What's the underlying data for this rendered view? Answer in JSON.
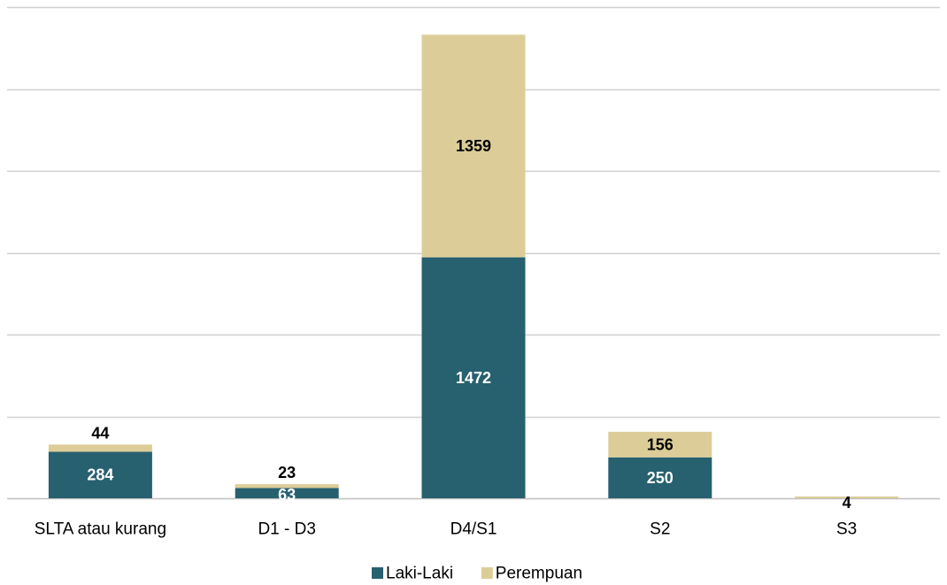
{
  "chart_data": {
    "type": "bar",
    "stacked": true,
    "categories": [
      "SLTA atau kurang",
      "D1 - D3",
      "D4/S1",
      "S2",
      "S3"
    ],
    "series": [
      {
        "name": "Laki-Laki",
        "values": [
          284,
          63,
          1472,
          250,
          0
        ],
        "labels": [
          "284",
          "63",
          "1472",
          "250",
          ""
        ],
        "color": "#27606f",
        "label_color": "#ffffff"
      },
      {
        "name": "Perempuan",
        "values": [
          44,
          23,
          1359,
          156,
          4
        ],
        "labels": [
          "44",
          "23",
          "1359",
          "156",
          "4"
        ],
        "color": "#dccd98",
        "label_color": "#000000"
      }
    ],
    "ylim": [
      0,
      3000
    ],
    "gridlines": [
      0,
      500,
      1000,
      1500,
      2000,
      2500,
      3000
    ],
    "grid": true,
    "legend": "bottom-center",
    "title": "",
    "xlabel": "",
    "ylabel": ""
  }
}
